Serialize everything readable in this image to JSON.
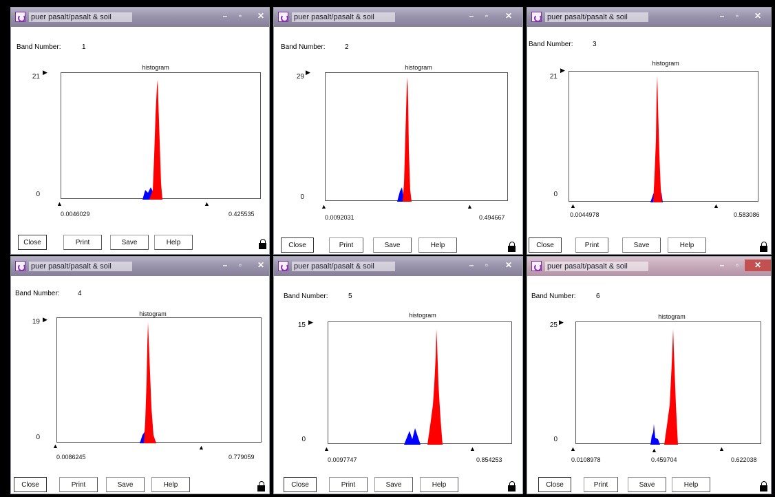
{
  "windows": [
    {
      "title": "puer pasalt/pasalt & soil",
      "band_label": "Band Number:",
      "band_value": "1",
      "hist_title": "histogram",
      "y_max": "21",
      "y_min": "0",
      "range_min": "0.0046029",
      "range_max": "0.425535",
      "buttons": {
        "close": "Close",
        "print": "Print",
        "save": "Save",
        "help": "Help"
      },
      "active": false
    },
    {
      "title": "puer pasalt/pasalt & soil",
      "band_label": "Band Number:",
      "band_value": "2",
      "hist_title": "histogram",
      "y_max": "29",
      "y_min": "0",
      "range_min": "0.0092031",
      "range_max": "0.494667",
      "buttons": {
        "close": "Close",
        "print": "Print",
        "save": "Save",
        "help": "Help"
      },
      "active": false
    },
    {
      "title": "puer pasalt/pasalt & soil",
      "band_label": "Band Number:",
      "band_value": "3",
      "hist_title": "histogram",
      "y_max": "21",
      "y_min": "0",
      "range_min": "0.0044978",
      "range_max": "0.583086",
      "buttons": {
        "close": "Close",
        "print": "Print",
        "save": "Save",
        "help": "Help"
      },
      "active": false
    },
    {
      "title": "puer pasalt/pasalt & soil",
      "band_label": "Band Number:",
      "band_value": "4",
      "hist_title": "histogram",
      "y_max": "19",
      "y_min": "0",
      "range_min": "0.0086245",
      "range_max": "0.779059",
      "buttons": {
        "close": "Close",
        "print": "Print",
        "save": "Save",
        "help": "Help"
      },
      "active": false
    },
    {
      "title": "puer pasalt/pasalt & soil",
      "band_label": "Band Number:",
      "band_value": "5",
      "hist_title": "histogram",
      "y_max": "15",
      "y_min": "0",
      "range_min": "0.0097747",
      "range_max": "0.854253",
      "buttons": {
        "close": "Close",
        "print": "Print",
        "save": "Save",
        "help": "Help"
      },
      "active": false
    },
    {
      "title": "puer pasalt/pasalt & soil",
      "band_label": "Band Number:",
      "band_value": "6",
      "hist_title": "histogram",
      "y_max": "25",
      "y_min": "0",
      "range_min": "0.0108978",
      "range_mid": "0.459704",
      "range_max": "0.622038",
      "buttons": {
        "close": "Close",
        "print": "Print",
        "save": "Save",
        "help": "Help"
      },
      "active": true
    }
  ],
  "colors": {
    "red_class": "#ff0000",
    "blue_class": "#0000ff"
  },
  "icons": [
    "window-app-icon",
    "minimize-icon",
    "maximize-icon",
    "close-icon",
    "lock-icon",
    "marker-arrow-icon"
  ]
}
